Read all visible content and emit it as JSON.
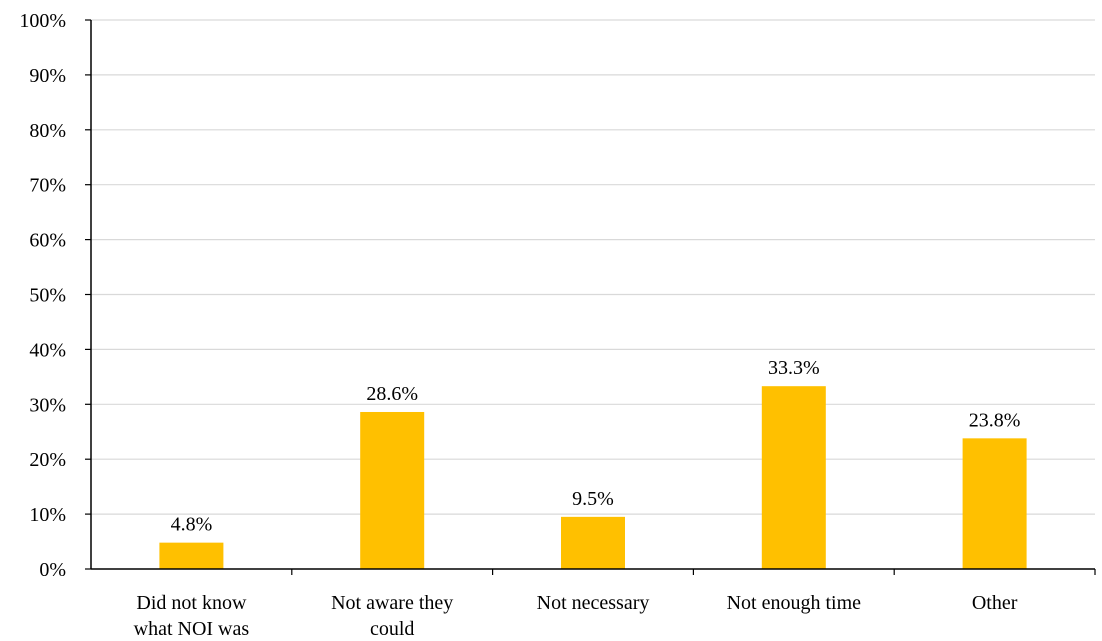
{
  "chart_data": {
    "type": "bar",
    "categories": [
      [
        "Did not know",
        "what NOI was"
      ],
      [
        "Not aware they",
        "could"
      ],
      [
        "Not necessary"
      ],
      [
        "Not enough time"
      ],
      [
        "Other"
      ]
    ],
    "values": [
      4.8,
      28.6,
      9.5,
      33.3,
      23.8
    ],
    "data_labels": [
      "4.8%",
      "28.6%",
      "9.5%",
      "33.3%",
      "23.8%"
    ],
    "ylim": [
      0,
      100
    ],
    "yticks": [
      0,
      10,
      20,
      30,
      40,
      50,
      60,
      70,
      80,
      90,
      100
    ],
    "ytick_labels": [
      "0%",
      "10%",
      "20%",
      "30%",
      "40%",
      "50%",
      "60%",
      "70%",
      "80%",
      "90%",
      "100%"
    ],
    "grid": true,
    "legend": "none",
    "bar_color": "#FFC000",
    "grid_color": "#D9D9D9",
    "axis_color": "#000000"
  }
}
